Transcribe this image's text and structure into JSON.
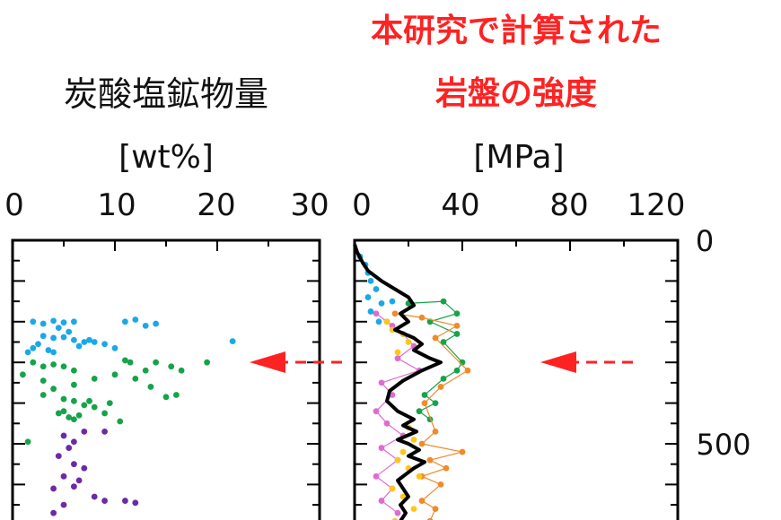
{
  "left_panel": {
    "title": "炭酸塩鉱物量",
    "unit": "[wt%]",
    "x_ticks": [
      "0",
      "10",
      "20",
      "30"
    ]
  },
  "right_panel": {
    "title_line1": "本研究で計算された",
    "title_line2": "岩盤の強度",
    "unit": "[MPa]",
    "x_ticks": [
      "0",
      "40",
      "80",
      "120"
    ]
  },
  "depth_ticks": [
    "0",
    "500"
  ],
  "colors": {
    "accent_red": "#ff2222",
    "blue": "#1aa8e8",
    "green": "#16a34a",
    "purple": "#6b2aa6",
    "orange": "#f08a2a",
    "yellow": "#ffc61a",
    "pink": "#e06bd0",
    "black": "#000000"
  },
  "chart_data": [
    {
      "type": "scatter",
      "title": "炭酸塩鉱物量",
      "xlabel": "[wt%]",
      "ylabel": "",
      "xlim": [
        0,
        30
      ],
      "ylim": [
        0,
        700
      ],
      "y_inverted": true,
      "x_ticks": [
        0,
        10,
        20,
        30
      ],
      "y_ticks": [
        0,
        500
      ],
      "series": [
        {
          "color": "#1aa8e8",
          "points": [
            [
              2,
              200
            ],
            [
              3,
              205
            ],
            [
              4,
              198
            ],
            [
              5,
              202
            ],
            [
              6,
              200
            ],
            [
              4.5,
              215
            ],
            [
              5.5,
              225
            ],
            [
              3,
              235
            ],
            [
              4,
              240
            ],
            [
              5,
              238
            ],
            [
              6,
              245
            ],
            [
              2.5,
              255
            ],
            [
              6.5,
              260
            ],
            [
              3.5,
              270
            ],
            [
              4,
              275
            ],
            [
              2,
              265
            ],
            [
              7.5,
              245
            ],
            [
              8,
              250
            ],
            [
              9,
              255
            ],
            [
              10,
              265
            ],
            [
              11,
              200
            ],
            [
              12,
              195
            ],
            [
              13,
              210
            ],
            [
              14,
              205
            ],
            [
              7,
              250
            ],
            [
              21.5,
              248
            ],
            [
              1.5,
              275
            ]
          ]
        },
        {
          "color": "#16a34a",
          "points": [
            [
              2,
              300
            ],
            [
              3,
              310
            ],
            [
              4,
              305
            ],
            [
              5,
              310
            ],
            [
              6,
              320
            ],
            [
              1,
              330
            ],
            [
              3,
              345
            ],
            [
              6,
              355
            ],
            [
              11,
              295
            ],
            [
              11.5,
              300
            ],
            [
              13,
              320
            ],
            [
              14,
              300
            ],
            [
              15.5,
              310
            ],
            [
              16.5,
              320
            ],
            [
              19,
              300
            ],
            [
              12,
              340
            ],
            [
              13.5,
              360
            ],
            [
              10,
              330
            ],
            [
              8,
              340
            ],
            [
              4,
              365
            ],
            [
              5,
              390
            ],
            [
              6,
              395
            ],
            [
              7,
              405
            ],
            [
              8,
              410
            ],
            [
              4.5,
              425
            ],
            [
              5.5,
              435
            ],
            [
              6,
              440
            ],
            [
              7.5,
              395
            ],
            [
              9,
              425
            ],
            [
              9.5,
              400
            ],
            [
              3,
              380
            ],
            [
              15,
              385
            ],
            [
              16,
              380
            ],
            [
              10.5,
              445
            ],
            [
              5,
              420
            ],
            [
              6.5,
              430
            ],
            [
              1.5,
              495
            ]
          ]
        },
        {
          "color": "#6b2aa6",
          "points": [
            [
              5,
              480
            ],
            [
              6,
              495
            ],
            [
              7,
              470
            ],
            [
              9,
              470
            ],
            [
              5.5,
              510
            ],
            [
              4.5,
              530
            ],
            [
              6,
              550
            ],
            [
              5,
              580
            ],
            [
              6.5,
              590
            ],
            [
              7,
              560
            ],
            [
              4,
              610
            ],
            [
              6,
              605
            ],
            [
              8,
              630
            ],
            [
              9,
              640
            ],
            [
              11,
              640
            ],
            [
              12,
              645
            ],
            [
              5,
              650
            ],
            [
              4,
              670
            ]
          ]
        }
      ]
    },
    {
      "type": "line",
      "title": "本研究で計算された 岩盤の強度",
      "xlabel": "[MPa]",
      "ylabel": "",
      "xlim": [
        0,
        120
      ],
      "ylim": [
        0,
        700
      ],
      "y_inverted": true,
      "x_ticks": [
        0,
        40,
        80,
        120
      ],
      "y_ticks": [
        0,
        500
      ],
      "series": [
        {
          "color": "#000000",
          "style": "thick",
          "points": [
            [
              0,
              10
            ],
            [
              1,
              30
            ],
            [
              3,
              55
            ],
            [
              5,
              75
            ],
            [
              10,
              100
            ],
            [
              15,
              120
            ],
            [
              20,
              140
            ],
            [
              22,
              160
            ],
            [
              17,
              180
            ],
            [
              20,
              200
            ],
            [
              15,
              220
            ],
            [
              22,
              240
            ],
            [
              25,
              255
            ],
            [
              22,
              270
            ],
            [
              28,
              290
            ],
            [
              32,
              300
            ],
            [
              25,
              320
            ],
            [
              18,
              345
            ],
            [
              13,
              370
            ],
            [
              12,
              395
            ],
            [
              16,
              420
            ],
            [
              22,
              440
            ],
            [
              18,
              455
            ],
            [
              23,
              470
            ],
            [
              16,
              490
            ],
            [
              20,
              500
            ],
            [
              24,
              515
            ],
            [
              20,
              530
            ],
            [
              26,
              545
            ],
            [
              22,
              560
            ],
            [
              19,
              575
            ],
            [
              16,
              590
            ],
            [
              18,
              610
            ],
            [
              20,
              630
            ],
            [
              17,
              650
            ],
            [
              19,
              670
            ],
            [
              17,
              690
            ]
          ]
        },
        {
          "color": "#1aa8e8",
          "style": "markers",
          "points": [
            [
              2,
              40
            ],
            [
              4,
              60
            ],
            [
              5,
              80
            ],
            [
              6,
              100
            ],
            [
              8,
              120
            ],
            [
              5,
              140
            ],
            [
              10,
              155
            ],
            [
              14,
              150
            ],
            [
              6,
              175
            ],
            [
              9,
              200
            ],
            [
              12,
              200
            ]
          ]
        },
        {
          "color": "#16a34a",
          "style": "thin",
          "points": [
            [
              20,
              155
            ],
            [
              33,
              150
            ],
            [
              38,
              180
            ],
            [
              28,
              200
            ],
            [
              38,
              230
            ],
            [
              33,
              250
            ],
            [
              40,
              300
            ],
            [
              38,
              320
            ],
            [
              33,
              340
            ],
            [
              26,
              380
            ],
            [
              30,
              400
            ],
            [
              24,
              420
            ],
            [
              28,
              440
            ]
          ]
        },
        {
          "color": "#f08a2a",
          "style": "thin",
          "points": [
            [
              15,
              180
            ],
            [
              25,
              190
            ],
            [
              38,
              210
            ],
            [
              30,
              240
            ],
            [
              42,
              320
            ],
            [
              32,
              360
            ],
            [
              26,
              400
            ],
            [
              30,
              470
            ],
            [
              25,
              500
            ],
            [
              40,
              520
            ],
            [
              28,
              540
            ],
            [
              34,
              560
            ],
            [
              25,
              580
            ],
            [
              32,
              600
            ],
            [
              25,
              640
            ],
            [
              30,
              660
            ],
            [
              28,
              690
            ]
          ]
        },
        {
          "color": "#e06bd0",
          "style": "thin",
          "points": [
            [
              8,
              180
            ],
            [
              14,
              210
            ],
            [
              18,
              230
            ],
            [
              22,
              260
            ],
            [
              16,
              290
            ],
            [
              24,
              320
            ],
            [
              10,
              350
            ],
            [
              14,
              380
            ],
            [
              8,
              420
            ],
            [
              12,
              450
            ],
            [
              18,
              480
            ],
            [
              10,
              510
            ],
            [
              16,
              540
            ],
            [
              8,
              580
            ],
            [
              14,
              610
            ],
            [
              10,
              640
            ],
            [
              16,
              670
            ]
          ]
        },
        {
          "color": "#ffc61a",
          "style": "markers",
          "points": [
            [
              12,
              200
            ],
            [
              14,
              220
            ],
            [
              18,
              230
            ],
            [
              20,
              250
            ],
            [
              16,
              275
            ],
            [
              20,
              460
            ],
            [
              22,
              490
            ],
            [
              18,
              520
            ],
            [
              16,
              540
            ],
            [
              20,
              560
            ],
            [
              24,
              580
            ],
            [
              14,
              610
            ],
            [
              18,
              630
            ],
            [
              22,
              660
            ],
            [
              15,
              690
            ]
          ]
        }
      ]
    }
  ]
}
